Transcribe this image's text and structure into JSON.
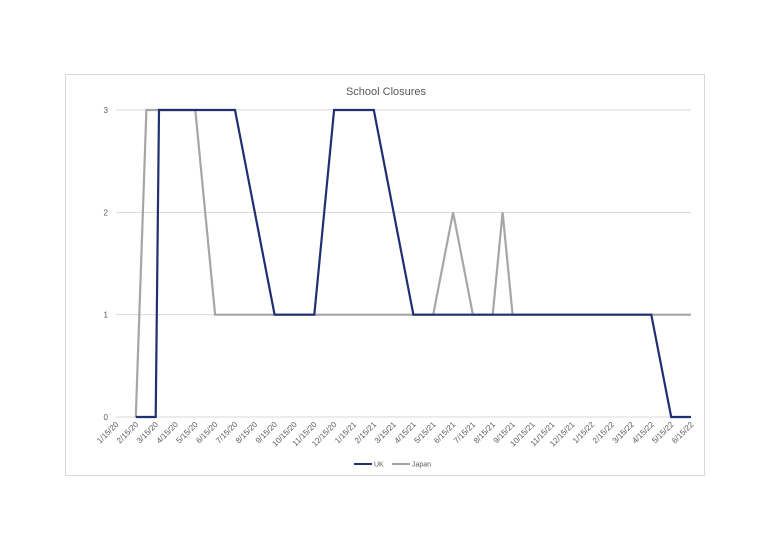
{
  "chart_data": {
    "type": "line",
    "title": "School Closures",
    "xlabel": "",
    "ylabel": "",
    "ylim": [
      0,
      3
    ],
    "y_ticks": [
      0,
      1,
      2,
      3
    ],
    "grid": "horizontal",
    "legend_position": "bottom",
    "categories": [
      "1/15/20",
      "2/15/20",
      "3/15/20",
      "4/15/20",
      "5/15/20",
      "6/15/20",
      "7/15/20",
      "8/15/20",
      "9/15/20",
      "10/15/20",
      "11/15/20",
      "12/15/20",
      "1/15/21",
      "2/15/21",
      "3/15/21",
      "4/15/21",
      "5/15/21",
      "6/15/21",
      "7/15/21",
      "8/15/21",
      "9/15/21",
      "10/15/21",
      "11/15/21",
      "12/15/21",
      "1/15/22",
      "2/15/22",
      "3/15/22",
      "4/15/22",
      "5/15/22",
      "6/15/22"
    ],
    "series": [
      {
        "name": "UK",
        "color": "#1f3070",
        "values": [
          {
            "x": "2/15/20",
            "y": 0
          },
          {
            "x": "3/15/20",
            "y": 0
          },
          {
            "x": "3/20/20",
            "y": 3
          },
          {
            "x": "7/15/20",
            "y": 3
          },
          {
            "x": "9/15/20",
            "y": 1
          },
          {
            "x": "11/15/20",
            "y": 1
          },
          {
            "x": "12/15/20",
            "y": 3
          },
          {
            "x": "2/15/21",
            "y": 3
          },
          {
            "x": "4/15/21",
            "y": 1
          },
          {
            "x": "7/15/21",
            "y": 1
          },
          {
            "x": "4/15/22",
            "y": 1
          },
          {
            "x": "5/15/22",
            "y": 0
          },
          {
            "x": "6/15/22",
            "y": 0
          }
        ]
      },
      {
        "name": "Japan",
        "color": "#a6a6a6",
        "values": [
          {
            "x": "2/15/20",
            "y": 0
          },
          {
            "x": "3/1/20",
            "y": 3
          },
          {
            "x": "5/15/20",
            "y": 3
          },
          {
            "x": "6/15/20",
            "y": 1
          },
          {
            "x": "5/15/21",
            "y": 1
          },
          {
            "x": "6/15/21",
            "y": 2
          },
          {
            "x": "7/15/21",
            "y": 1
          },
          {
            "x": "8/15/21",
            "y": 1
          },
          {
            "x": "8/30/21",
            "y": 2
          },
          {
            "x": "9/15/21",
            "y": 1
          },
          {
            "x": "6/15/22",
            "y": 1
          }
        ]
      }
    ]
  }
}
